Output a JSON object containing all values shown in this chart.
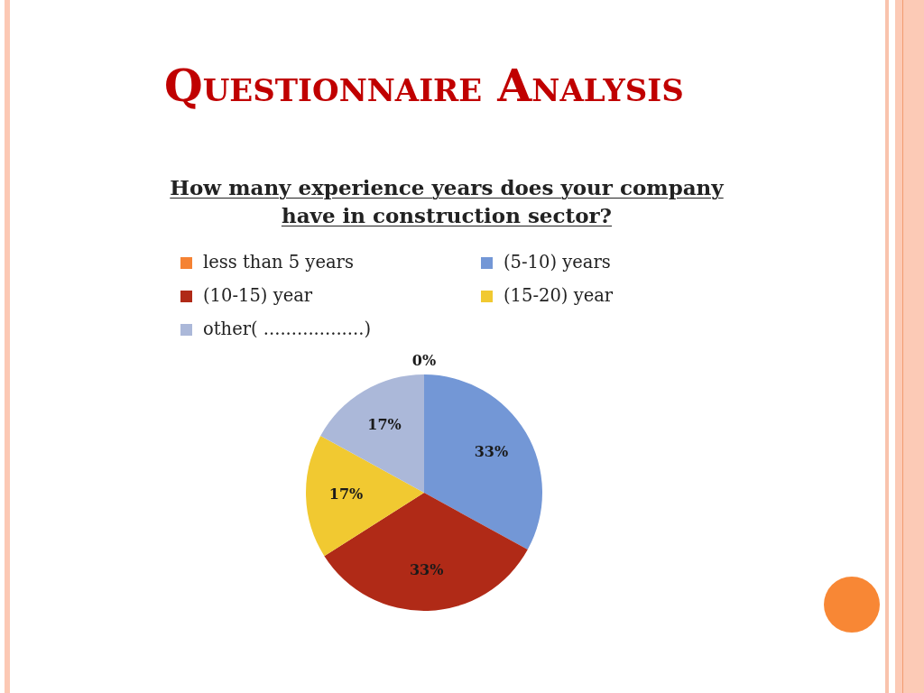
{
  "chart_data": {
    "type": "pie",
    "title": "Questionnaire Analysis",
    "subtitle": "How many experience years does your company have in construction sector?",
    "categories": [
      "less than 5 years",
      "(5-10) years",
      "(10-15) year",
      "(15-20) year",
      "other( ..................)"
    ],
    "values": [
      0,
      33,
      33,
      17,
      17
    ],
    "colors": [
      "#f58233",
      "#7397d6",
      "#b02a17",
      "#f1c931",
      "#abb8d9"
    ],
    "value_labels": [
      "0%",
      "33%",
      "33%",
      "17%",
      "17%"
    ],
    "legend": "top"
  }
}
